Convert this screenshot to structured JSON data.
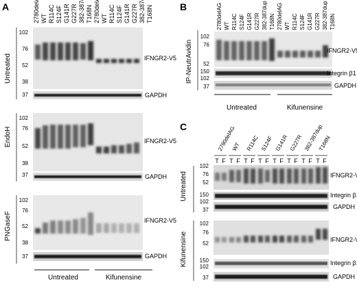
{
  "panel_letters": [
    "A",
    "B",
    "C"
  ],
  "samples": [
    "2780delAG",
    "WT",
    "R114C",
    "S124F",
    "G141R",
    "G227R",
    "382-387dup",
    "T168N"
  ],
  "panel_a": {
    "lane_labels": [
      "2780delAG",
      "WT",
      "R114C",
      "S124F",
      "G141R",
      "G227R",
      "382-387dup",
      "T168N",
      "2780delAG",
      "WT",
      "R114C",
      "S124F",
      "G141R",
      "G227R",
      "382-387dup",
      "T168N"
    ],
    "blots": [
      {
        "condition": "Untreated",
        "markers": [
          "102",
          "76",
          "52",
          "38"
        ],
        "gapdh_marker": "37",
        "band_label": "IFNGR2-V5",
        "gapdh_label": "GAPDH"
      },
      {
        "condition": "EndoH",
        "markers": [
          "102",
          "76",
          "52",
          "38"
        ],
        "gapdh_marker": "37",
        "band_label": "IFNGR2-V5",
        "gapdh_label": "GAPDH"
      },
      {
        "condition": "PNGaseF",
        "markers": [
          "102",
          "76",
          "52",
          "38"
        ],
        "gapdh_marker": "37",
        "band_label": "IFNGR2-V5",
        "gapdh_label": "GAPDH"
      }
    ],
    "groups": [
      "Untreated",
      "Kifunensine"
    ]
  },
  "panel_b": {
    "lane_labels": [
      "2780delAG",
      "WT",
      "R114C",
      "S124F",
      "G141R",
      "G227R",
      "382-387dup",
      "T168N",
      "2780delAG",
      "WT",
      "R114C",
      "S124F",
      "G141R",
      "G227R",
      "382-387dup",
      "T168N"
    ],
    "side_label": "IP-NeutrAvidin",
    "markers": [
      "102",
      "76",
      "52"
    ],
    "integrin_markers": [
      "150",
      "102"
    ],
    "gapdh_marker": "37",
    "band_label": "IFNGR2-V5",
    "integrin_label": "Integrin β1",
    "gapdh_label": "GAPDH",
    "groups": [
      "Untreated",
      "Kifunensine"
    ]
  },
  "panel_c": {
    "lane_labels": [
      "2780delAG",
      "WT",
      "R114C",
      "S124F",
      "G141R",
      "G227R",
      "382-387dup",
      "T168N"
    ],
    "fractions": [
      "T",
      "F"
    ],
    "blocks": [
      {
        "condition": "Untreated",
        "markers": [
          "102",
          "76",
          "52"
        ],
        "integrin_markers": [
          "150",
          "102"
        ],
        "gapdh_marker": "37",
        "band_label": "IFNGR2-V5",
        "integrin_label": "Integrin β1",
        "gapdh_label": "GAPDH"
      },
      {
        "condition": "Kifunensine",
        "markers": [
          "102",
          "76",
          "52"
        ],
        "integrin_markers": [
          "150",
          "102"
        ],
        "gapdh_marker": "37",
        "band_label": "IFNGR2-V5",
        "integrin_label": "Integrin β1",
        "gapdh_label": "GAPDH"
      }
    ]
  }
}
